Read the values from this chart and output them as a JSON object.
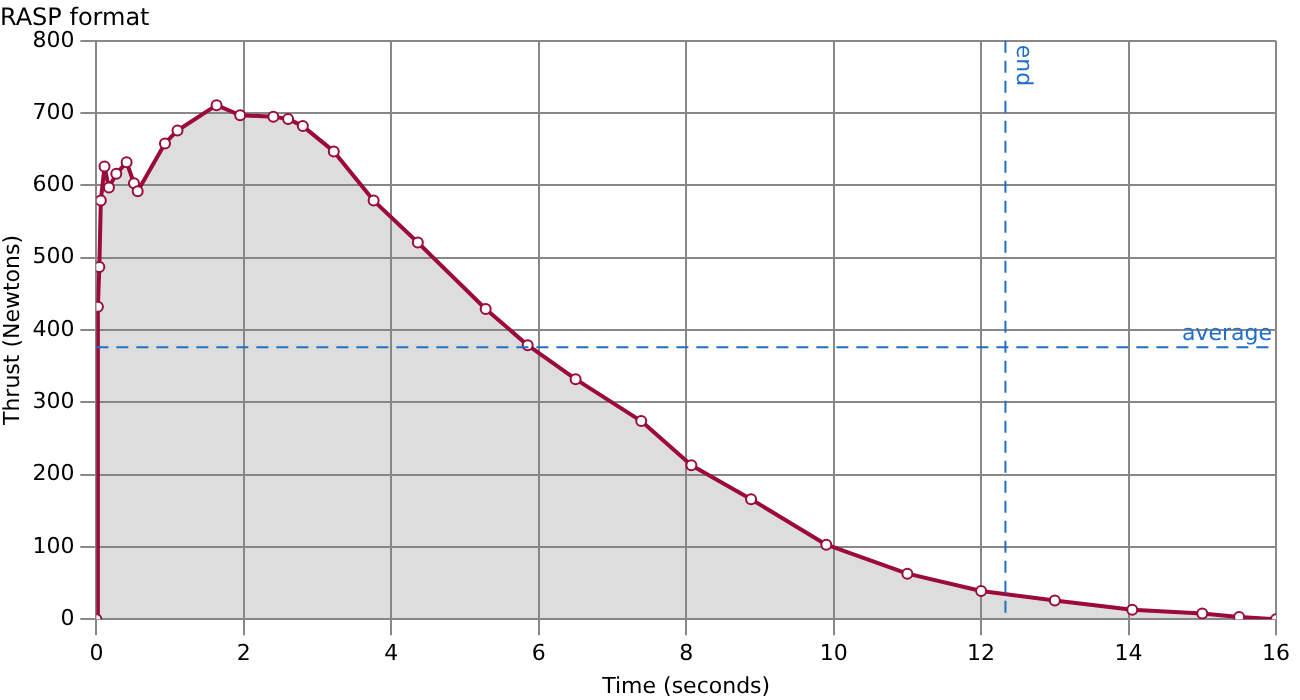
{
  "chart_data": {
    "type": "area",
    "title": "RASP format",
    "xlabel": "Time (seconds)",
    "ylabel": "Thrust (Newtons)",
    "x": [
      0,
      0.02,
      0.04,
      0.06,
      0.11,
      0.17,
      0.27,
      0.41,
      0.51,
      0.56,
      0.93,
      1.1,
      1.63,
      1.95,
      2.4,
      2.6,
      2.8,
      3.22,
      3.76,
      4.36,
      5.28,
      5.85,
      6.5,
      7.39,
      8.07,
      8.88,
      9.9,
      11.0,
      12.0,
      13.0,
      14.05,
      15.0,
      15.5,
      16.0
    ],
    "series": [
      {
        "color": "#9b0a3a",
        "values": [
          0,
          432,
          487,
          579,
          626,
          597,
          616,
          632,
          603,
          592,
          658,
          676,
          711,
          697,
          695,
          692,
          682,
          647,
          579,
          521,
          429,
          379,
          332,
          274,
          213,
          166,
          103,
          63,
          39,
          26,
          13,
          8,
          3,
          0
        ]
      }
    ],
    "xlim": [
      0,
      16
    ],
    "xticks": [
      0,
      2,
      4,
      6,
      8,
      10,
      12,
      14,
      16
    ],
    "ylim": [
      0,
      800
    ],
    "yticks": [
      0,
      100,
      200,
      300,
      400,
      500,
      600,
      700,
      800
    ],
    "grid": true,
    "legend": false,
    "marker": "circle",
    "line_style": "solid",
    "ref_lines": [
      {
        "axis": "x",
        "value": 12.33,
        "label": "end",
        "color": "#1f6fc9",
        "line_style": "dashed"
      },
      {
        "axis": "y",
        "value": 376,
        "label": "average",
        "color": "#1f6fc9",
        "line_style": "dashed"
      }
    ]
  }
}
